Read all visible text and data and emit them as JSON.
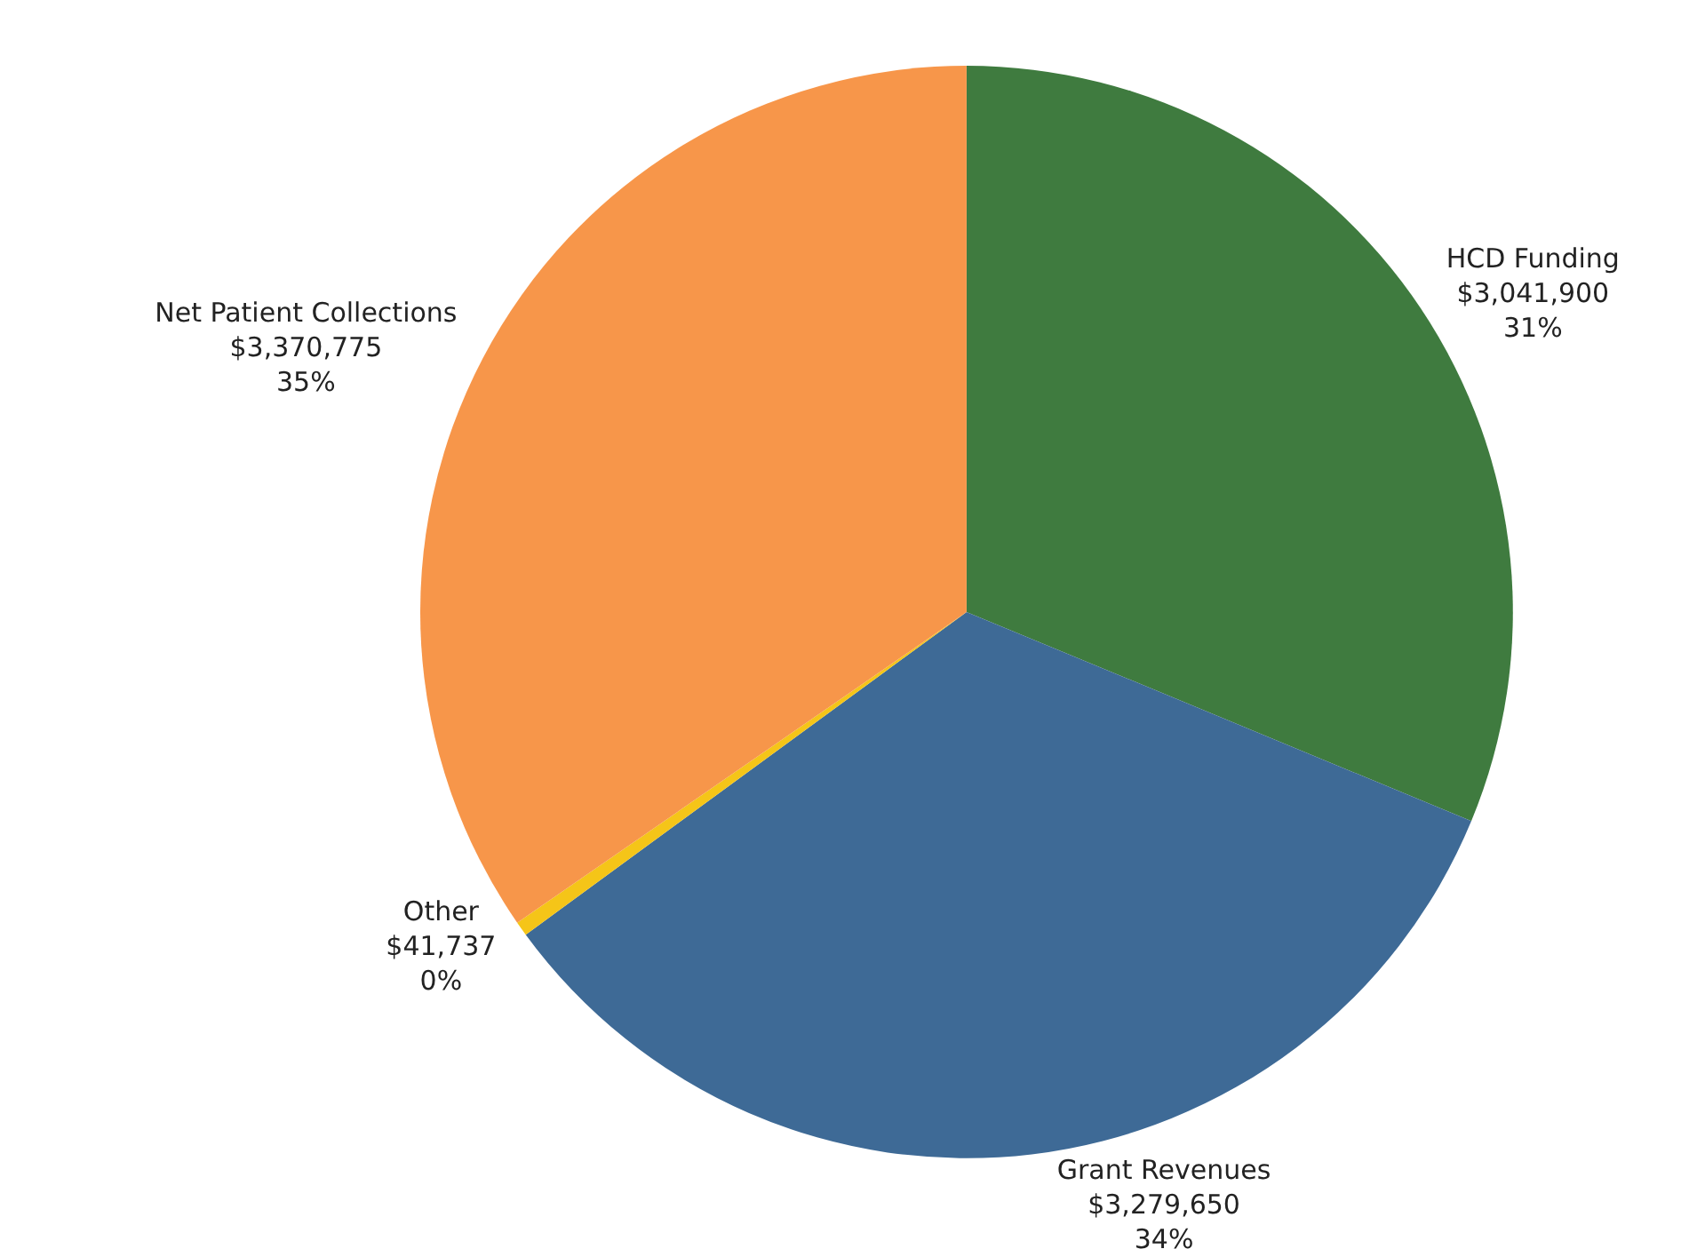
{
  "chart_data": {
    "type": "pie",
    "categories": [
      "HCD Funding",
      "Grant Revenues",
      "Other",
      "Net Patient Collections"
    ],
    "values": [
      3041900,
      3279650,
      41737,
      3370775
    ],
    "value_labels": [
      "$3,041,900\n31%",
      "$3,279,650\n34%",
      "$41,737\n0%",
      "$3,370,775\n35%"
    ],
    "colors": [
      "#3f7b3f",
      "#3e6a96",
      "#f5c518",
      "#f7964a"
    ],
    "legend": false
  }
}
